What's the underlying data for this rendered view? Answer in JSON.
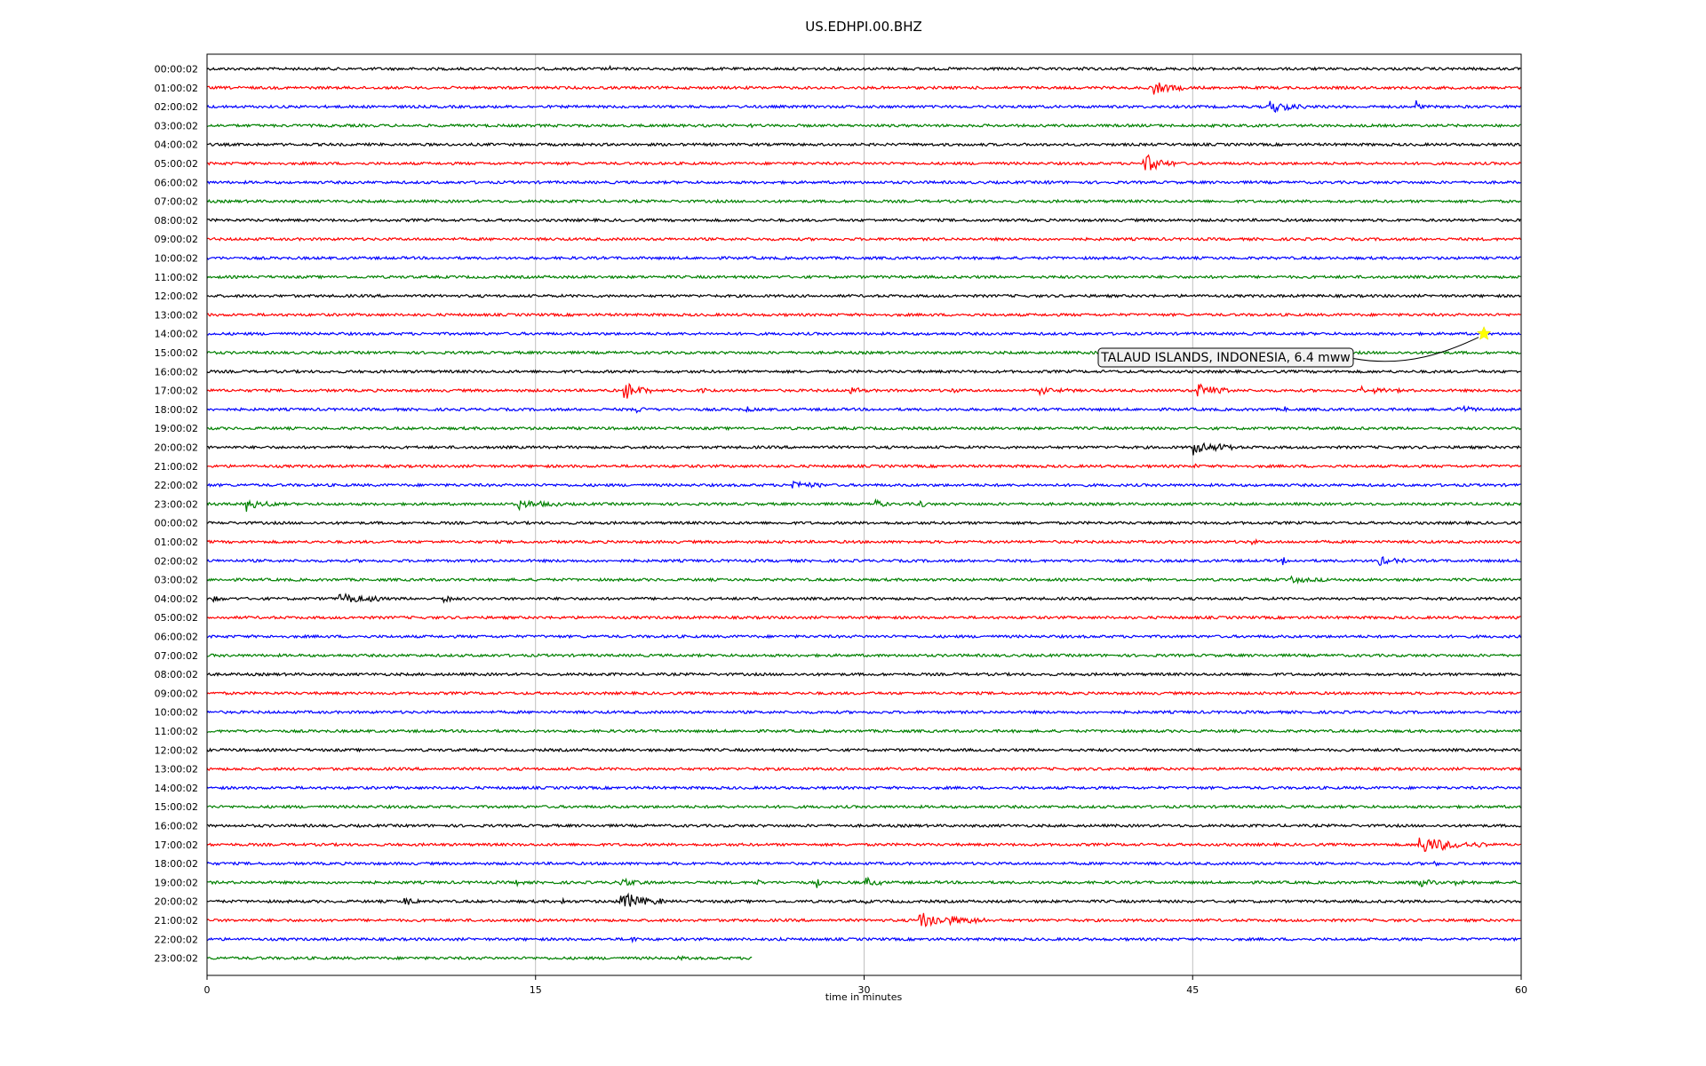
{
  "chart_data": {
    "type": "line",
    "title": "US.EDHPI.00.BHZ",
    "xlabel": "time in minutes",
    "ylabel": "",
    "xlim": [
      0,
      60
    ],
    "xticks": [
      "0",
      "15",
      "30",
      "45",
      "60"
    ],
    "xtick_values": [
      0,
      15,
      30,
      45,
      60
    ],
    "grid": "vertical",
    "trace_colors": [
      "#000000",
      "#ff0000",
      "#0000ff",
      "#008000"
    ],
    "rows": [
      {
        "label": "00:00:02",
        "end": 60,
        "events": [
          {
            "x": 18.4,
            "amp": 5,
            "dur": 0.1
          },
          {
            "x": 40.0,
            "amp": 4,
            "dur": 0.2
          }
        ]
      },
      {
        "label": "01:00:02",
        "end": 60,
        "events": [
          {
            "x": 43.2,
            "amp": 9,
            "dur": 1.5
          }
        ]
      },
      {
        "label": "02:00:02",
        "end": 60,
        "events": [
          {
            "x": 48.5,
            "amp": 9,
            "dur": 1.8
          },
          {
            "x": 55.2,
            "amp": 7,
            "dur": 0.3
          }
        ]
      },
      {
        "label": "03:00:02",
        "end": 60,
        "events": [
          {
            "x": 24.8,
            "amp": 2,
            "dur": 0.4
          }
        ]
      },
      {
        "label": "04:00:02",
        "end": 60,
        "events": []
      },
      {
        "label": "05:00:02",
        "end": 60,
        "events": [
          {
            "x": 42.7,
            "amp": 16,
            "dur": 1.5
          }
        ]
      },
      {
        "label": "06:00:02",
        "end": 60,
        "events": [
          {
            "x": 38.4,
            "amp": 3,
            "dur": 0.2
          }
        ]
      },
      {
        "label": "07:00:02",
        "end": 60,
        "events": []
      },
      {
        "label": "08:00:02",
        "end": 60,
        "events": []
      },
      {
        "label": "09:00:02",
        "end": 60,
        "events": []
      },
      {
        "label": "10:00:02",
        "end": 60,
        "events": []
      },
      {
        "label": "11:00:02",
        "end": 60,
        "events": []
      },
      {
        "label": "12:00:02",
        "end": 60,
        "events": []
      },
      {
        "label": "13:00:02",
        "end": 60,
        "events": []
      },
      {
        "label": "14:00:02",
        "end": 60,
        "events": []
      },
      {
        "label": "15:00:02",
        "end": 60,
        "events": []
      },
      {
        "label": "16:00:02",
        "end": 60,
        "events": []
      },
      {
        "label": "17:00:02",
        "end": 60,
        "events": [
          {
            "x": 19.0,
            "amp": 13,
            "dur": 1.3
          },
          {
            "x": 22.5,
            "amp": 5,
            "dur": 0.8
          },
          {
            "x": 29.3,
            "amp": 5,
            "dur": 0.9
          },
          {
            "x": 34.0,
            "amp": 6,
            "dur": 0.3
          },
          {
            "x": 38.0,
            "amp": 4,
            "dur": 1.6
          },
          {
            "x": 45.2,
            "amp": 10,
            "dur": 1.5
          },
          {
            "x": 52.7,
            "amp": 11,
            "dur": 0.2
          },
          {
            "x": 53.2,
            "amp": 6,
            "dur": 1.3
          }
        ]
      },
      {
        "label": "18:00:02",
        "end": 60,
        "events": [
          {
            "x": 19.6,
            "amp": 4,
            "dur": 0.8
          },
          {
            "x": 24.6,
            "amp": 4,
            "dur": 0.5
          },
          {
            "x": 49.2,
            "amp": 3,
            "dur": 0.3
          },
          {
            "x": 57.0,
            "amp": 6,
            "dur": 1.2
          }
        ]
      },
      {
        "label": "19:00:02",
        "end": 60,
        "events": []
      },
      {
        "label": "20:00:02",
        "end": 60,
        "events": [
          {
            "x": 45.0,
            "amp": 10,
            "dur": 2.0
          }
        ]
      },
      {
        "label": "21:00:02",
        "end": 60,
        "events": [
          {
            "x": 45.1,
            "amp": 9,
            "dur": 0.1
          }
        ]
      },
      {
        "label": "22:00:02",
        "end": 60,
        "events": [
          {
            "x": 26.7,
            "amp": 7,
            "dur": 1.5
          }
        ]
      },
      {
        "label": "23:00:02",
        "end": 60,
        "events": [
          {
            "x": 1.8,
            "amp": 8,
            "dur": 1.4
          },
          {
            "x": 14.2,
            "amp": 6,
            "dur": 2.0
          },
          {
            "x": 30.5,
            "amp": 6,
            "dur": 0.6
          },
          {
            "x": 32.5,
            "amp": 5,
            "dur": 0.5
          }
        ]
      },
      {
        "label": "00:00:02",
        "end": 60,
        "events": []
      },
      {
        "label": "01:00:02",
        "end": 60,
        "events": [
          {
            "x": 47.7,
            "amp": 3,
            "dur": 0.4
          }
        ]
      },
      {
        "label": "02:00:02",
        "end": 60,
        "events": [
          {
            "x": 49.1,
            "amp": 5,
            "dur": 0.3
          },
          {
            "x": 53.5,
            "amp": 6,
            "dur": 1.2
          }
        ]
      },
      {
        "label": "03:00:02",
        "end": 60,
        "events": [
          {
            "x": 49.5,
            "amp": 3,
            "dur": 2.0
          }
        ]
      },
      {
        "label": "04:00:02",
        "end": 60,
        "events": [
          {
            "x": 0.2,
            "amp": 4,
            "dur": 0.6
          },
          {
            "x": 6.0,
            "amp": 9,
            "dur": 2.2
          },
          {
            "x": 10.8,
            "amp": 5,
            "dur": 0.6
          }
        ]
      },
      {
        "label": "05:00:02",
        "end": 60,
        "events": []
      },
      {
        "label": "06:00:02",
        "end": 60,
        "events": []
      },
      {
        "label": "07:00:02",
        "end": 60,
        "events": []
      },
      {
        "label": "08:00:02",
        "end": 60,
        "events": []
      },
      {
        "label": "09:00:02",
        "end": 60,
        "events": []
      },
      {
        "label": "10:00:02",
        "end": 60,
        "events": []
      },
      {
        "label": "11:00:02",
        "end": 60,
        "events": []
      },
      {
        "label": "12:00:02",
        "end": 60,
        "events": []
      },
      {
        "label": "13:00:02",
        "end": 60,
        "events": []
      },
      {
        "label": "14:00:02",
        "end": 60,
        "events": []
      },
      {
        "label": "15:00:02",
        "end": 60,
        "events": []
      },
      {
        "label": "16:00:02",
        "end": 60,
        "events": []
      },
      {
        "label": "17:00:02",
        "end": 60,
        "events": [
          {
            "x": 55.3,
            "amp": 12,
            "dur": 3.2
          }
        ]
      },
      {
        "label": "18:00:02",
        "end": 60,
        "events": [
          {
            "x": 56.0,
            "amp": 3,
            "dur": 0.3
          }
        ]
      },
      {
        "label": "19:00:02",
        "end": 60,
        "events": [
          {
            "x": 14.1,
            "amp": 6,
            "dur": 0.4
          },
          {
            "x": 18.8,
            "amp": 4,
            "dur": 1.5
          },
          {
            "x": 25.0,
            "amp": 9,
            "dur": 0.3
          },
          {
            "x": 27.8,
            "amp": 11,
            "dur": 0.3
          },
          {
            "x": 30.0,
            "amp": 8,
            "dur": 0.8
          },
          {
            "x": 55.3,
            "amp": 5,
            "dur": 1.0
          },
          {
            "x": 57.0,
            "amp": 5,
            "dur": 0.5
          }
        ]
      },
      {
        "label": "20:00:02",
        "end": 60,
        "events": [
          {
            "x": 9.0,
            "amp": 5,
            "dur": 1.0
          },
          {
            "x": 16.2,
            "amp": 8,
            "dur": 0.2
          },
          {
            "x": 18.8,
            "amp": 14,
            "dur": 2.0
          },
          {
            "x": 30.0,
            "amp": 6,
            "dur": 0.2
          }
        ]
      },
      {
        "label": "21:00:02",
        "end": 60,
        "events": [
          {
            "x": 32.5,
            "amp": 12,
            "dur": 3.0
          }
        ]
      },
      {
        "label": "22:00:02",
        "end": 60,
        "events": [
          {
            "x": 19.3,
            "amp": 5,
            "dur": 0.5
          },
          {
            "x": 26.0,
            "amp": 3,
            "dur": 0.3
          }
        ]
      },
      {
        "label": "23:00:02",
        "end": 24.9,
        "events": [
          {
            "x": 21.3,
            "amp": 3,
            "dur": 0.6
          }
        ]
      }
    ],
    "annotation": {
      "text": "TALAUD ISLANDS, INDONESIA, 6.4 mww",
      "row": 14,
      "x": 58.3,
      "marker": "star",
      "marker_color": "#ffff00"
    }
  }
}
